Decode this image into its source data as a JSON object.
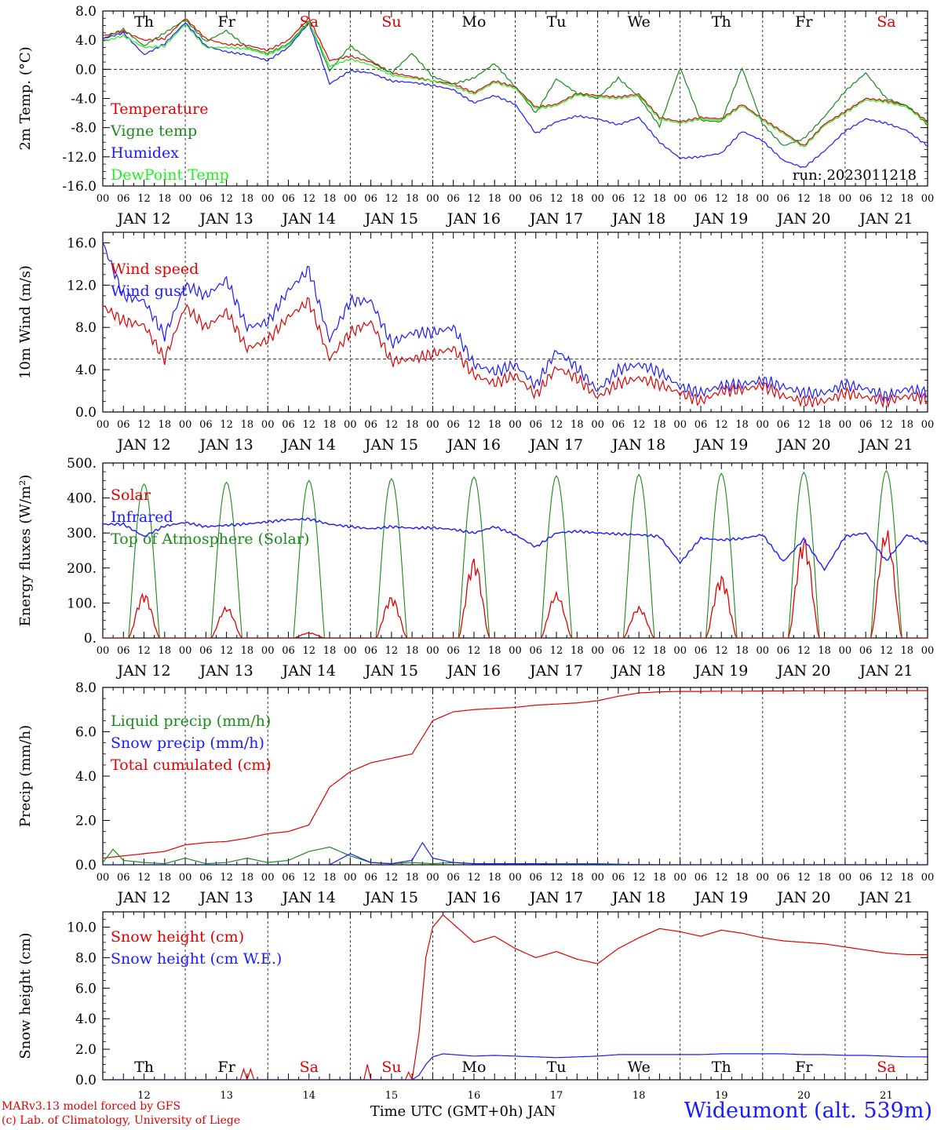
{
  "chart_data": [
    {
      "type": "line",
      "ylabel": "2m Temp. (°C)",
      "ylim": [
        -16,
        8
      ],
      "y_ticks": [
        "8.0",
        "4.0",
        "0.0",
        "-4.0",
        "-8.0",
        "-12.0",
        "-16.0"
      ],
      "reference_line": 0,
      "legend": [
        "Temperature",
        "Vigne temp",
        "Humidex",
        "DewPoint Temp"
      ],
      "annotation": "run: 2023011218",
      "x_hours": [
        0,
        6,
        12,
        18,
        24,
        30,
        36,
        42,
        48,
        54,
        60,
        66,
        72,
        78,
        84,
        90,
        96,
        102,
        108,
        114,
        120,
        126,
        132,
        138,
        144,
        150,
        156,
        162,
        168,
        174,
        180,
        186,
        192,
        198,
        204,
        210,
        216,
        222,
        228,
        234,
        240
      ],
      "series": [
        {
          "name": "Temperature",
          "color": "#e00000",
          "values": [
            4.6,
            5.2,
            4.0,
            4.2,
            7.0,
            4.2,
            3.4,
            3.3,
            2.6,
            4.0,
            7.0,
            1.2,
            1.8,
            1.0,
            -0.5,
            -1.0,
            -1.6,
            -2.0,
            -3.2,
            -1.6,
            -2.4,
            -5.2,
            -4.8,
            -3.3,
            -3.6,
            -3.8,
            -3.4,
            -6.6,
            -7.2,
            -6.6,
            -6.8,
            -4.8,
            -6.8,
            -8.6,
            -10.5,
            -7.5,
            -5.8,
            -4.0,
            -4.3,
            -5.0,
            -7.2
          ]
        },
        {
          "name": "Vigne temp",
          "color": "#1a8a1a",
          "values": [
            4.2,
            5.5,
            3.2,
            5.0,
            6.8,
            3.8,
            5.3,
            3.0,
            2.2,
            3.5,
            6.6,
            -0.2,
            3.2,
            1.2,
            -0.5,
            2.2,
            -1.0,
            -2.0,
            -1.2,
            0.8,
            -2.4,
            -6.0,
            -1.3,
            -3.3,
            -4.0,
            -1.2,
            -3.8,
            -7.8,
            0.2,
            -7.0,
            -7.2,
            0.2,
            -7.5,
            -10.5,
            -9.5,
            -6.5,
            -3.0,
            -0.5,
            -4.0,
            -5.0,
            -7.6
          ]
        },
        {
          "name": "Humidex",
          "color": "#1a1aff",
          "values": [
            4.2,
            5.0,
            2.0,
            3.5,
            6.4,
            3.2,
            2.4,
            2.0,
            1.2,
            3.0,
            6.4,
            -2.0,
            -0.2,
            -0.5,
            -1.6,
            -1.8,
            -2.2,
            -2.8,
            -4.6,
            -3.6,
            -4.8,
            -8.8,
            -7.2,
            -6.4,
            -6.8,
            -7.6,
            -6.6,
            -10.0,
            -12.2,
            -12.0,
            -11.5,
            -8.5,
            -9.8,
            -12.5,
            -13.5,
            -11.2,
            -8.5,
            -6.8,
            -7.4,
            -8.4,
            -10.5
          ]
        },
        {
          "name": "DewPoint Temp",
          "color": "#22ee22",
          "values": [
            3.8,
            4.6,
            3.0,
            3.2,
            6.2,
            3.0,
            3.0,
            2.8,
            2.0,
            3.3,
            6.5,
            0.4,
            1.4,
            0.6,
            -0.8,
            -1.2,
            -1.6,
            -2.3,
            -3.4,
            -1.8,
            -2.6,
            -5.4,
            -5.0,
            -3.5,
            -3.8,
            -4.0,
            -3.6,
            -6.8,
            -7.4,
            -6.8,
            -7.0,
            -5.0,
            -7.0,
            -8.8,
            -10.7,
            -7.7,
            -6.0,
            -4.2,
            -4.5,
            -5.2,
            -7.4
          ]
        }
      ]
    },
    {
      "type": "line",
      "ylabel": "10m Wind (m/s)",
      "ylim": [
        0,
        17
      ],
      "y_ticks": [
        "16.0",
        "12.0",
        "8.0",
        "4.0",
        "0.0"
      ],
      "reference_line": 5,
      "legend": [
        "Wind speed",
        "Wind gust"
      ],
      "x_hours": [
        0,
        6,
        12,
        18,
        24,
        30,
        36,
        42,
        48,
        54,
        60,
        66,
        72,
        78,
        84,
        90,
        96,
        102,
        108,
        114,
        120,
        126,
        132,
        138,
        144,
        150,
        156,
        162,
        168,
        174,
        180,
        186,
        192,
        198,
        204,
        210,
        216,
        222,
        228,
        234,
        240
      ],
      "series": [
        {
          "name": "Wind speed",
          "color": "#e00000",
          "values": [
            10.0,
            8.6,
            8.2,
            5.0,
            10.0,
            8.0,
            9.5,
            6.0,
            6.8,
            9.0,
            10.5,
            5.0,
            7.5,
            8.5,
            4.8,
            5.0,
            5.5,
            6.0,
            3.5,
            2.7,
            3.5,
            1.6,
            4.2,
            3.2,
            1.4,
            2.7,
            3.2,
            2.6,
            1.8,
            1.0,
            2.0,
            2.1,
            2.5,
            1.5,
            1.0,
            1.0,
            1.8,
            1.4,
            1.0,
            1.5,
            1.2
          ]
        },
        {
          "name": "Wind gust",
          "color": "#1a1aff",
          "values": [
            16.0,
            11.0,
            10.5,
            7.2,
            12.0,
            11.0,
            12.5,
            8.0,
            8.5,
            11.5,
            13.5,
            6.8,
            10.5,
            10.5,
            6.5,
            7.5,
            7.5,
            8.0,
            4.5,
            3.8,
            4.5,
            2.5,
            5.8,
            4.2,
            2.0,
            4.0,
            4.5,
            3.8,
            2.4,
            1.8,
            2.5,
            2.6,
            3.0,
            2.4,
            1.8,
            1.8,
            2.6,
            2.2,
            1.5,
            2.2,
            1.8
          ]
        }
      ]
    },
    {
      "type": "line",
      "ylabel": "Energy fluxes (W/m²)",
      "ylim": [
        0,
        500
      ],
      "y_ticks": [
        "500.",
        "400.",
        "300.",
        "200.",
        "100.",
        "0."
      ],
      "legend": [
        "Solar",
        "Infrared",
        "Top of Atmosphere (Solar)"
      ],
      "toa_daily_peak": [
        440,
        445,
        450,
        455,
        460,
        463,
        467,
        470,
        473,
        478
      ],
      "solar_daily_peak": [
        130,
        90,
        15,
        120,
        230,
        130,
        90,
        180,
        290,
        315
      ],
      "series": [
        {
          "name": "Infrared",
          "color": "#1a1aff",
          "x_hours": [
            0,
            6,
            12,
            18,
            24,
            30,
            36,
            42,
            48,
            54,
            60,
            66,
            72,
            78,
            84,
            90,
            96,
            102,
            108,
            114,
            120,
            126,
            132,
            138,
            144,
            150,
            156,
            162,
            168,
            174,
            180,
            186,
            192,
            198,
            204,
            210,
            216,
            222,
            228,
            234,
            240
          ],
          "values": [
            325,
            325,
            290,
            320,
            330,
            318,
            322,
            326,
            332,
            338,
            340,
            325,
            318,
            312,
            318,
            314,
            315,
            310,
            300,
            318,
            295,
            260,
            300,
            305,
            300,
            297,
            295,
            290,
            215,
            285,
            280,
            284,
            295,
            218,
            282,
            195,
            290,
            300,
            220,
            295,
            270
          ]
        }
      ]
    },
    {
      "type": "line",
      "ylabel": "Precip (mm/h)",
      "ylim": [
        0,
        8
      ],
      "y_ticks": [
        "8.0",
        "6.0",
        "4.0",
        "2.0",
        "0.0"
      ],
      "legend": [
        "Liquid precip (mm/h)",
        "Snow precip (mm/h)",
        "Total cumulated (cm)"
      ],
      "series": [
        {
          "name": "Total cumulated (cm)",
          "color": "#e00000",
          "x_hours": [
            0,
            6,
            12,
            18,
            24,
            30,
            36,
            42,
            48,
            54,
            60,
            66,
            72,
            78,
            84,
            90,
            96,
            102,
            108,
            114,
            120,
            126,
            132,
            138,
            144,
            150,
            156,
            162,
            168,
            174,
            180,
            186,
            192,
            198,
            204,
            210,
            216,
            222,
            228,
            234,
            240
          ],
          "values": [
            0.3,
            0.4,
            0.5,
            0.6,
            0.9,
            1.0,
            1.05,
            1.2,
            1.4,
            1.5,
            1.8,
            3.5,
            4.2,
            4.6,
            4.8,
            5.0,
            6.5,
            6.9,
            7.0,
            7.05,
            7.1,
            7.2,
            7.25,
            7.3,
            7.4,
            7.6,
            7.75,
            7.8,
            7.82,
            7.82,
            7.83,
            7.83,
            7.84,
            7.84,
            7.85,
            7.85,
            7.85,
            7.86,
            7.86,
            7.86,
            7.86
          ]
        },
        {
          "name": "Liquid precip (mm/h)",
          "color": "#1a8a1a",
          "x_hours": [
            0,
            3,
            6,
            12,
            18,
            24,
            30,
            36,
            42,
            48,
            54,
            60,
            66,
            72,
            78,
            84,
            90,
            96,
            102,
            108,
            114,
            120,
            126,
            132,
            138,
            144,
            150,
            156,
            162,
            168,
            174,
            180,
            186,
            192,
            198,
            204,
            210,
            216,
            222,
            228,
            234,
            240
          ],
          "values": [
            0.1,
            0.7,
            0.2,
            0.1,
            0.05,
            0.3,
            0.05,
            0.1,
            0.3,
            0.1,
            0.2,
            0.6,
            0.8,
            0.4,
            0.1,
            0.05,
            0.1,
            0.05,
            0.1,
            0.05,
            0.05,
            0.05,
            0.05,
            0.05,
            0.05,
            0.05,
            0.03,
            0,
            0,
            0,
            0,
            0,
            0,
            0,
            0,
            0,
            0,
            0,
            0,
            0,
            0,
            0
          ]
        },
        {
          "name": "Snow precip (mm/h)",
          "color": "#1a1aff",
          "x_hours": [
            0,
            6,
            12,
            18,
            24,
            30,
            36,
            42,
            48,
            54,
            60,
            66,
            72,
            78,
            84,
            90,
            93,
            96,
            102,
            108,
            114,
            120,
            126,
            132,
            138,
            144,
            150,
            156,
            162,
            168,
            174,
            180,
            186,
            192,
            198,
            204,
            210,
            216,
            222,
            228,
            234,
            240
          ],
          "values": [
            0,
            0,
            0,
            0,
            0,
            0,
            0,
            0,
            0,
            0,
            0,
            0,
            0.5,
            0.1,
            0.05,
            0.2,
            1.0,
            0.3,
            0.1,
            0.05,
            0.05,
            0.05,
            0.05,
            0.02,
            0.02,
            0.02,
            0.01,
            0.01,
            0,
            0,
            0,
            0,
            0,
            0,
            0,
            0,
            0,
            0,
            0,
            0,
            0,
            0
          ]
        }
      ]
    },
    {
      "type": "line",
      "ylabel": "Snow height (cm)",
      "ylim": [
        0,
        11
      ],
      "y_ticks": [
        "10.0",
        "8.0",
        "6.0",
        "4.0",
        "2.0",
        "0.0"
      ],
      "legend": [
        "Snow height (cm)",
        "Snow height (cm W.E.)"
      ],
      "x_day_labels": [
        "12",
        "13",
        "14",
        "15",
        "16",
        "17",
        "18",
        "19",
        "20",
        "21"
      ],
      "xlabel": "Time UTC (GMT+0h) JAN",
      "series": [
        {
          "name": "Snow height (cm)",
          "color": "#e00000",
          "x_hours": [
            0,
            40,
            41,
            42,
            43,
            44,
            60,
            76,
            77,
            78,
            79,
            80,
            88,
            89,
            90,
            92,
            94,
            96,
            99,
            102,
            108,
            114,
            120,
            126,
            132,
            138,
            144,
            150,
            156,
            162,
            168,
            174,
            180,
            186,
            192,
            198,
            204,
            210,
            216,
            222,
            228,
            234,
            240
          ],
          "values": [
            0,
            0,
            0.7,
            0,
            0.7,
            0,
            0,
            0,
            1.0,
            0,
            0,
            0,
            0,
            0.5,
            0,
            3.0,
            8.0,
            10.0,
            10.8,
            10.2,
            9.0,
            9.4,
            8.6,
            8.0,
            8.4,
            7.9,
            7.6,
            8.6,
            9.3,
            9.9,
            9.7,
            9.4,
            9.8,
            9.6,
            9.3,
            9.1,
            9.0,
            8.9,
            8.7,
            8.5,
            8.3,
            8.2,
            8.2
          ]
        },
        {
          "name": "Snow height (cm W.E.)",
          "color": "#1a1aff",
          "x_hours": [
            0,
            90,
            92,
            94,
            96,
            99,
            102,
            108,
            114,
            120,
            126,
            132,
            138,
            144,
            150,
            156,
            162,
            168,
            174,
            180,
            186,
            192,
            198,
            204,
            210,
            216,
            222,
            228,
            234,
            240
          ],
          "values": [
            0,
            0,
            0.3,
            1.0,
            1.5,
            1.7,
            1.65,
            1.55,
            1.6,
            1.55,
            1.5,
            1.45,
            1.5,
            1.55,
            1.65,
            1.65,
            1.65,
            1.65,
            1.65,
            1.7,
            1.7,
            1.7,
            1.7,
            1.65,
            1.65,
            1.6,
            1.6,
            1.55,
            1.5,
            1.5
          ]
        }
      ]
    }
  ],
  "x_axis": {
    "hour_ticks": [
      "00",
      "06",
      "12",
      "18"
    ],
    "date_labels": [
      "JAN 12",
      "JAN 13",
      "JAN 14",
      "JAN 15",
      "JAN 16",
      "JAN 17",
      "JAN 18",
      "JAN 19",
      "JAN 20",
      "JAN 21"
    ],
    "weekdays": [
      "Th",
      "Fr",
      "Sa",
      "Su",
      "Mo",
      "Tu",
      "We",
      "Th",
      "Fr",
      "Sa"
    ],
    "weekend_color": "#e00000",
    "weekday_color": "#000000"
  },
  "footer": {
    "model": "MARv3.13 model forced by GFS",
    "credit": "(c) Lab. of Climatology, University of Liege",
    "station": "Wideumont (alt. 539m)"
  },
  "colors": {
    "red": "#e00000",
    "green": "#1a8a1a",
    "blue": "#1a1aff",
    "light_green": "#22ee22"
  }
}
